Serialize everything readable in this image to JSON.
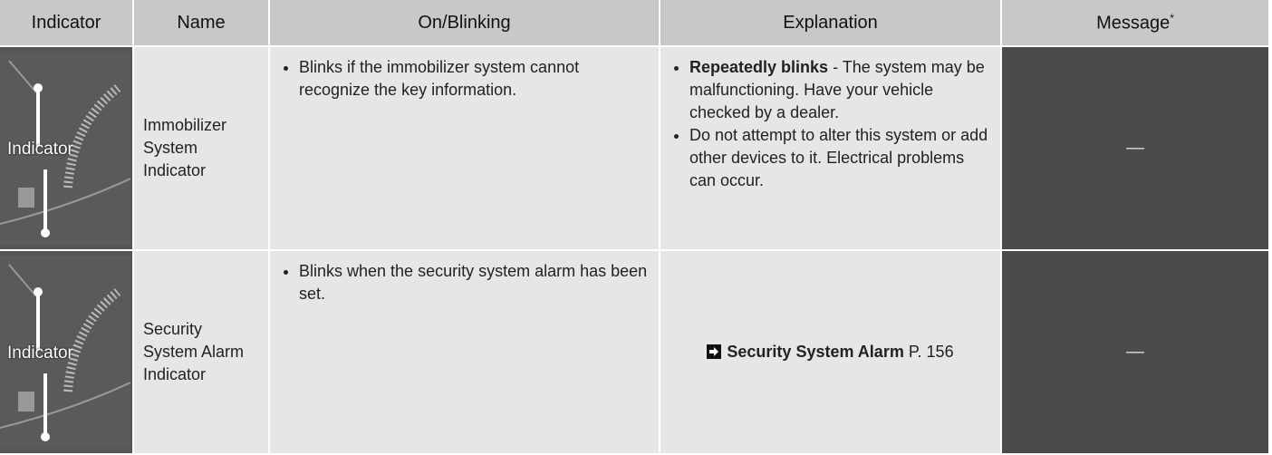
{
  "table": {
    "headers": [
      "Indicator",
      "Name",
      "On/Blinking",
      "Explanation",
      "Message"
    ],
    "header_note": "*",
    "rows": [
      {
        "indicator_label": "Indicator",
        "name": "Immobilizer System Indicator",
        "on_blinking": [
          "Blinks if the immobilizer system cannot recognize the key information."
        ],
        "explanation": [
          {
            "bold": "Repeatedly blinks",
            "text": "- The system may be malfunctioning. Have your vehicle checked by a dealer."
          },
          {
            "text": "Do not attempt to alter this system or add other devices to it. Electrical problems can occur."
          }
        ],
        "message": "—"
      },
      {
        "indicator_label": "Indicator",
        "name": "Security System Alarm Indicator",
        "on_blinking": [
          "Blinks when the security system alarm has been set."
        ],
        "reference": {
          "title": "Security System Alarm",
          "page": "P. 156"
        },
        "message": "—"
      }
    ]
  }
}
